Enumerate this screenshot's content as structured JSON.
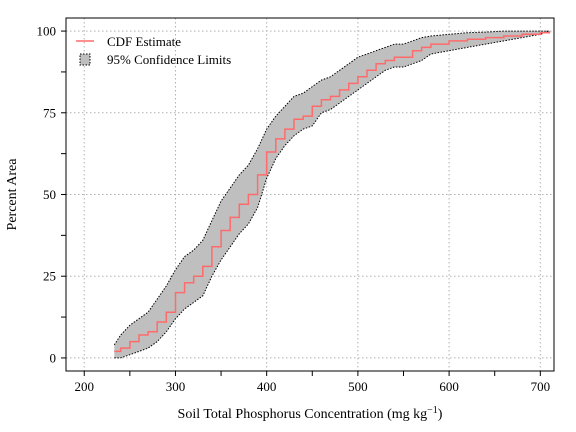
{
  "chart_data": {
    "type": "line",
    "title": "",
    "xlabel": "Soil Total Phosphorus Concentration (mg kg",
    "xlabel_superscript": "−1",
    "xlabel_suffix": ")",
    "ylabel": "Percent Area",
    "xlim": [
      180,
      715
    ],
    "ylim": [
      -4,
      104
    ],
    "xticks": [
      200,
      300,
      400,
      500,
      600,
      700
    ],
    "yticks": [
      0,
      25,
      50,
      75,
      100
    ],
    "xminor": [
      200,
      250,
      300,
      350,
      400,
      450,
      500,
      550,
      600,
      650,
      700
    ],
    "yminor": [
      0,
      12.5,
      25,
      37.5,
      50,
      62.5,
      75,
      87.5,
      100
    ],
    "grid": true,
    "legend_position": "top-left",
    "legend": [
      {
        "label": "CDF Estimate",
        "kind": "line"
      },
      {
        "label": "95% Confidence Limits",
        "kind": "band"
      }
    ],
    "colors": {
      "cdf_line": "#ff6b6b",
      "band_fill": "#bfbfbf",
      "band_border": "#000000"
    },
    "series": [
      {
        "name": "CDF Estimate",
        "x": [
          233,
          240,
          250,
          260,
          270,
          280,
          290,
          300,
          310,
          320,
          330,
          340,
          350,
          360,
          370,
          380,
          390,
          400,
          410,
          420,
          430,
          440,
          450,
          460,
          470,
          480,
          490,
          500,
          510,
          520,
          530,
          540,
          550,
          560,
          570,
          580,
          600,
          620,
          640,
          660,
          680,
          700,
          710
        ],
        "y": [
          2,
          3,
          5,
          7,
          8,
          11,
          14,
          20,
          23,
          25,
          28,
          34,
          39,
          43,
          47,
          50,
          56,
          63,
          67,
          70,
          73,
          74,
          77,
          79,
          80,
          82,
          84,
          86,
          88,
          90,
          91,
          92,
          92,
          94,
          95,
          96,
          97,
          97.5,
          98,
          98.5,
          99,
          99.5,
          100
        ]
      },
      {
        "name": "95% Confidence Limits",
        "x": [
          233,
          240,
          250,
          260,
          270,
          280,
          290,
          300,
          310,
          320,
          330,
          340,
          350,
          360,
          370,
          380,
          390,
          400,
          410,
          420,
          430,
          440,
          450,
          460,
          470,
          480,
          490,
          500,
          510,
          520,
          530,
          540,
          550,
          560,
          570,
          580,
          600,
          620,
          640,
          660,
          680,
          700,
          710
        ],
        "lower": [
          0,
          0,
          1,
          2,
          3,
          5,
          8,
          12,
          15,
          17,
          19,
          25,
          30,
          34,
          38,
          41,
          46,
          55,
          61,
          65,
          68,
          70,
          71,
          75,
          76,
          78,
          80,
          82,
          84,
          86,
          88,
          89,
          89,
          90,
          91,
          93,
          94,
          95,
          96,
          97,
          98,
          99,
          100
        ],
        "upper": [
          4,
          7,
          10,
          12,
          14,
          18,
          22,
          27,
          31,
          33,
          36,
          42,
          48,
          52,
          56,
          59,
          64,
          70,
          74,
          77,
          80,
          81,
          83,
          85,
          86,
          88,
          90,
          92,
          93,
          94,
          95,
          96,
          96,
          97,
          98,
          98.5,
          99,
          99.5,
          99.7,
          100,
          100,
          100,
          100
        ]
      }
    ]
  }
}
